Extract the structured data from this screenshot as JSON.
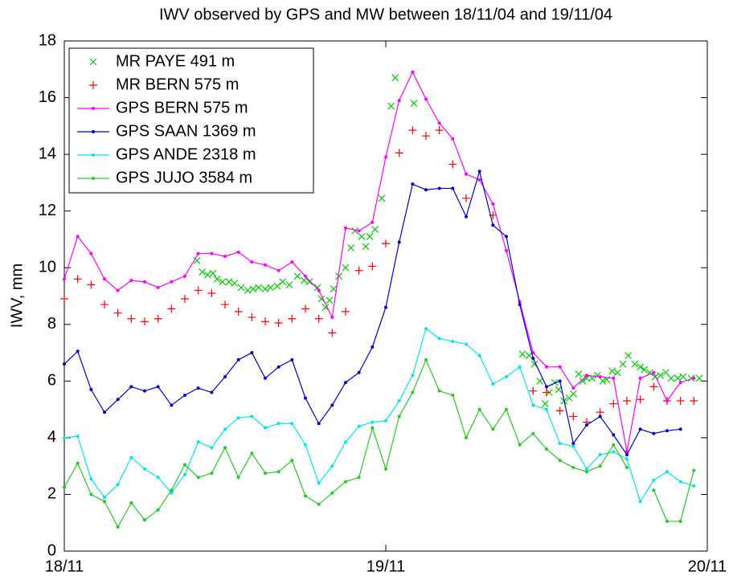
{
  "chart_data": {
    "type": "line",
    "title": "IWV observed by GPS and MW between 18/11/04 and 19/11/04",
    "y_label": "IWV, mm",
    "xlim": [
      0,
      48
    ],
    "xticks": [
      {
        "value": 0,
        "label": "18/11"
      },
      {
        "value": 24,
        "label": "19/11"
      },
      {
        "value": 48,
        "label": "20/11"
      }
    ],
    "ylim": [
      0,
      18
    ],
    "yticks": [
      0,
      2,
      4,
      6,
      8,
      10,
      12,
      14,
      16,
      18
    ],
    "grid": false,
    "legend": "upper left",
    "series": [
      {
        "name": "MR PAYE 491 m",
        "color": "#00cc00",
        "style": "x",
        "x": [
          9.9,
          10.3,
          10.7,
          11.1,
          11.4,
          11.8,
          12.3,
          12.7,
          13.2,
          13.7,
          14.1,
          14.5,
          15.0,
          15.4,
          15.9,
          16.3,
          16.8,
          17.4,
          17.9,
          18.3,
          18.9,
          19.2,
          19.5,
          19.8,
          20.1,
          20.5,
          21.0,
          21.4,
          21.7,
          22.2,
          22.5,
          22.8,
          23.2,
          23.7,
          24.4,
          24.7,
          26.1,
          34.2,
          34.7,
          35.1,
          35.5,
          35.9,
          36.2,
          36.6,
          36.9,
          37.3,
          37.7,
          38.0,
          38.4,
          38.7,
          39.0,
          39.4,
          39.8,
          40.2,
          40.5,
          40.9,
          41.3,
          41.7,
          42.1,
          42.6,
          43.0,
          43.3,
          43.7,
          44.1,
          44.5,
          44.9,
          45.3,
          45.8,
          46.2,
          46.8,
          47.4
        ],
        "values": [
          10.25,
          9.85,
          9.75,
          9.8,
          9.6,
          9.5,
          9.5,
          9.45,
          9.3,
          9.2,
          9.25,
          9.3,
          9.25,
          9.3,
          9.35,
          9.5,
          9.4,
          9.7,
          9.55,
          9.5,
          9.3,
          8.9,
          8.6,
          8.85,
          9.25,
          9.7,
          10.0,
          10.7,
          11.3,
          11.1,
          10.75,
          11.1,
          11.35,
          12.45,
          15.7,
          16.7,
          15.8,
          6.95,
          6.9,
          6.6,
          6.0,
          5.2,
          5.6,
          5.95,
          5.7,
          5.3,
          5.4,
          5.55,
          6.25,
          6.0,
          6.1,
          6.1,
          6.2,
          6.0,
          6.05,
          6.35,
          6.3,
          6.6,
          6.9,
          6.6,
          6.5,
          6.4,
          6.3,
          6.15,
          6.2,
          6.3,
          6.1,
          6.1,
          6.15,
          6.1,
          6.1
        ]
      },
      {
        "name": "MR BERN 575 m",
        "color": "#ff0000",
        "style": "+",
        "x": [
          0,
          1,
          2,
          3,
          4,
          5,
          6,
          7,
          8,
          9,
          10,
          11,
          12,
          13,
          14,
          15,
          16,
          17,
          18,
          19,
          20,
          21,
          22,
          23,
          24,
          25,
          26,
          27,
          28,
          29,
          30,
          31,
          32,
          33,
          34,
          35,
          36,
          37,
          38,
          39,
          40,
          41,
          42,
          43,
          44,
          45,
          46,
          47
        ],
        "values": [
          8.9,
          9.6,
          9.4,
          8.7,
          8.4,
          8.2,
          8.1,
          8.2,
          8.55,
          8.9,
          9.2,
          9.1,
          8.7,
          8.45,
          8.25,
          8.1,
          8.05,
          8.2,
          8.55,
          8.2,
          7.7,
          8.45,
          9.9,
          10.05,
          10.85,
          14.05,
          14.85,
          14.65,
          14.85,
          13.65,
          12.45,
          null,
          11.85,
          null,
          null,
          5.65,
          5.6,
          4.95,
          4.75,
          4.55,
          4.9,
          5.2,
          5.3,
          5.35,
          5.8,
          5.3,
          5.3,
          5.3
        ]
      },
      {
        "name": "GPS BERN 575 m",
        "color": "#ff00ff",
        "style": "line",
        "x": [
          0,
          1,
          2,
          3,
          4,
          5,
          6,
          7,
          8,
          9,
          10,
          11,
          12,
          13,
          14,
          15,
          16,
          17,
          18,
          19,
          20,
          21,
          22,
          23,
          24,
          25,
          26,
          27,
          28,
          29,
          30,
          31,
          32,
          33,
          34,
          35,
          36,
          37,
          38,
          39,
          40,
          41,
          42,
          43,
          44,
          45,
          46,
          47,
          48
        ],
        "values": [
          9.6,
          11.1,
          10.5,
          9.6,
          9.2,
          9.55,
          9.5,
          9.3,
          9.5,
          9.7,
          10.5,
          10.5,
          10.4,
          10.55,
          10.2,
          10.1,
          9.9,
          10.2,
          9.7,
          9.2,
          8.25,
          11.4,
          11.3,
          11.6,
          13.9,
          15.9,
          16.9,
          15.95,
          15.1,
          14.55,
          13.3,
          13.1,
          12.25,
          10.6,
          8.8,
          7.0,
          6.5,
          6.5,
          5.75,
          6.2,
          6.15,
          6.1,
          3.5,
          6.1,
          6.3,
          5.3,
          5.95,
          6.1,
          null
        ]
      },
      {
        "name": "GPS SAAN 1369 m",
        "color": "#0000cc",
        "style": "line",
        "x": [
          0,
          1,
          2,
          3,
          4,
          5,
          6,
          7,
          8,
          9,
          10,
          11,
          12,
          13,
          14,
          15,
          16,
          17,
          18,
          19,
          20,
          21,
          22,
          23,
          24,
          25,
          26,
          27,
          28,
          29,
          30,
          31,
          32,
          33,
          34,
          35,
          36,
          37,
          38,
          39,
          40,
          41,
          42,
          43,
          44,
          45,
          46,
          47,
          48
        ],
        "values": [
          6.6,
          7.05,
          5.7,
          4.9,
          5.35,
          5.8,
          5.65,
          5.8,
          5.15,
          5.5,
          5.75,
          5.6,
          6.15,
          6.75,
          7.0,
          6.1,
          6.5,
          6.75,
          5.4,
          4.5,
          5.15,
          5.95,
          6.3,
          7.2,
          8.6,
          10.9,
          12.95,
          12.75,
          12.8,
          12.8,
          11.8,
          13.4,
          11.5,
          11.1,
          8.7,
          6.8,
          5.8,
          6.0,
          3.8,
          4.45,
          4.75,
          4.1,
          3.4,
          4.3,
          4.15,
          4.25,
          4.3,
          null,
          null
        ]
      },
      {
        "name": "GPS ANDE 2318 m",
        "color": "#00e5ee",
        "style": "line",
        "x": [
          0,
          1,
          2,
          3,
          4,
          5,
          6,
          7,
          8,
          9,
          10,
          11,
          12,
          13,
          14,
          15,
          16,
          17,
          18,
          19,
          20,
          21,
          22,
          23,
          24,
          25,
          26,
          27,
          28,
          29,
          30,
          31,
          32,
          33,
          34,
          35,
          36,
          37,
          38,
          39,
          40,
          41,
          42,
          43,
          44,
          45,
          46,
          47,
          48
        ],
        "values": [
          4.0,
          4.05,
          2.55,
          1.9,
          2.35,
          3.3,
          2.9,
          2.6,
          2.05,
          2.7,
          3.85,
          3.65,
          4.3,
          4.7,
          4.75,
          4.35,
          4.5,
          4.5,
          3.75,
          2.4,
          3.0,
          3.85,
          4.4,
          4.55,
          4.6,
          5.3,
          6.2,
          7.85,
          7.5,
          7.4,
          7.3,
          6.9,
          5.9,
          6.15,
          6.5,
          5.15,
          5.0,
          3.8,
          3.7,
          2.9,
          3.4,
          3.5,
          3.25,
          1.75,
          2.5,
          2.8,
          2.45,
          2.3,
          null
        ]
      },
      {
        "name": "GPS JUJO 3584 m",
        "color": "#22cc22",
        "style": "line",
        "x": [
          0,
          1,
          2,
          3,
          4,
          5,
          6,
          7,
          8,
          9,
          10,
          11,
          12,
          13,
          14,
          15,
          16,
          17,
          18,
          19,
          20,
          21,
          22,
          23,
          24,
          25,
          26,
          27,
          28,
          29,
          30,
          31,
          32,
          33,
          34,
          35,
          36,
          37,
          38,
          39,
          40,
          41,
          42,
          43,
          44,
          45,
          46,
          47,
          48
        ],
        "values": [
          2.25,
          3.1,
          2.0,
          1.75,
          0.85,
          1.7,
          1.1,
          1.45,
          2.15,
          3.05,
          2.6,
          2.75,
          3.65,
          2.6,
          3.45,
          2.75,
          2.8,
          3.2,
          1.95,
          1.65,
          2.05,
          2.45,
          2.6,
          4.35,
          2.9,
          4.75,
          5.6,
          6.75,
          5.65,
          5.5,
          4.0,
          5.0,
          4.3,
          5.0,
          3.75,
          4.15,
          3.6,
          3.2,
          2.95,
          2.8,
          3.0,
          3.75,
          2.95,
          null,
          2.15,
          1.05,
          1.05,
          2.85,
          null
        ]
      }
    ]
  }
}
